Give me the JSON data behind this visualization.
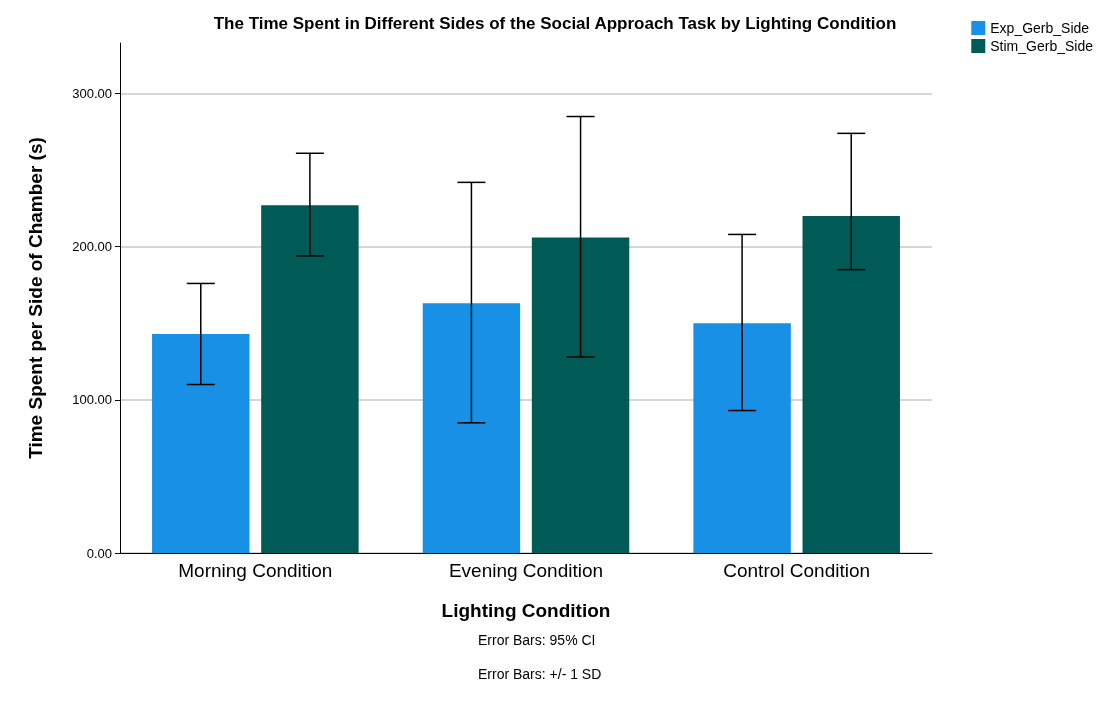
{
  "chart_data": {
    "type": "bar",
    "title": "The Time Spent in Different Sides of the Social Approach Task by Lighting Condition",
    "xlabel": "Lighting Condition",
    "ylabel": "Time Spent per Side of Chamber (s)",
    "categories": [
      "Morning Condition",
      "Evening Condition",
      "Control Condition"
    ],
    "series": [
      {
        "name": "Exp_Gerb_Side",
        "color": "#1790e6",
        "values": [
          143,
          163,
          150
        ],
        "errors": [
          [
            110,
            176
          ],
          [
            85,
            242
          ],
          [
            93,
            208
          ]
        ]
      },
      {
        "name": "Stim_Gerb_Side",
        "color": "#005a55",
        "values": [
          227,
          206,
          220
        ],
        "errors": [
          [
            194,
            261
          ],
          [
            128,
            285
          ],
          [
            185,
            274
          ]
        ]
      }
    ],
    "ylim": [
      0,
      333
    ],
    "yticks": [
      {
        "value": 0,
        "label": "0.00"
      },
      {
        "value": 100,
        "label": "100.00"
      },
      {
        "value": 200,
        "label": "200.00"
      },
      {
        "value": 300,
        "label": "300.00"
      }
    ],
    "grid": "y",
    "legend": "top right",
    "annotations": [
      "Error Bars: 95% CI",
      "Error Bars: +/- 1 SD"
    ]
  }
}
